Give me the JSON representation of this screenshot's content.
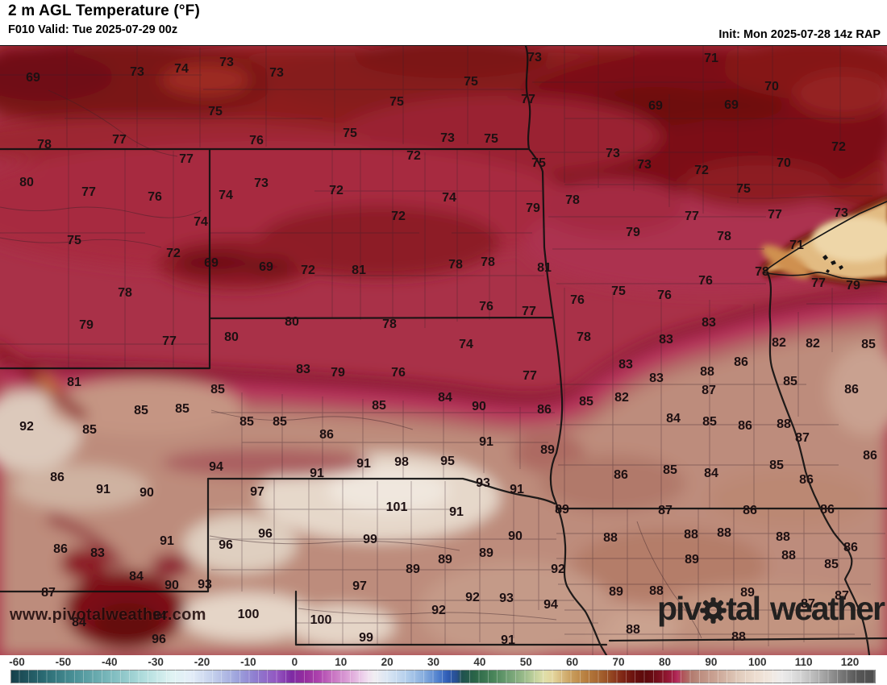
{
  "header": {
    "title": "2 m AGL Temperature (°F)",
    "valid": "F010 Valid: Tue 2025-07-29 00z",
    "init": "Init: Mon 2025-07-28 14z RAP"
  },
  "watermark": "www.pivotalweather.com",
  "logo": {
    "part1": "piv",
    "part2": "tal",
    "part3": "weather",
    "gear_icon": "gear-icon",
    "color": "#1d1d1d"
  },
  "colorbar": {
    "ticks": [
      -60,
      -50,
      -40,
      -30,
      -20,
      -10,
      0,
      10,
      20,
      30,
      40,
      50,
      60,
      70,
      80,
      90,
      100,
      110,
      120
    ],
    "range": [
      -62,
      126
    ],
    "palette": [
      [
        -62,
        "#16404b"
      ],
      [
        -55,
        "#2a6a72"
      ],
      [
        -48,
        "#4b9298"
      ],
      [
        -40,
        "#7fbcbf"
      ],
      [
        -33,
        "#b2dede"
      ],
      [
        -27,
        "#e0f3f3"
      ],
      [
        -23,
        "#e4eef8"
      ],
      [
        -18,
        "#c3cfec"
      ],
      [
        -13,
        "#9fa5dd"
      ],
      [
        -9,
        "#8f7ed0"
      ],
      [
        -4,
        "#9354c0"
      ],
      [
        -1,
        "#7e2ba4"
      ],
      [
        2,
        "#962d9e"
      ],
      [
        5,
        "#ae44ae"
      ],
      [
        8,
        "#c873c2"
      ],
      [
        12,
        "#e0aadb"
      ],
      [
        15,
        "#efd7ee"
      ],
      [
        17,
        "#f1eef2"
      ],
      [
        20,
        "#d9e5f3"
      ],
      [
        24,
        "#b4cfec"
      ],
      [
        28,
        "#84abdd"
      ],
      [
        31,
        "#4f7fcd"
      ],
      [
        33,
        "#2f5cb5"
      ],
      [
        35,
        "#284f8e"
      ],
      [
        36,
        "#1f5150"
      ],
      [
        39,
        "#2b6547"
      ],
      [
        43,
        "#49855a"
      ],
      [
        47,
        "#78a578"
      ],
      [
        50,
        "#9fbe8d"
      ],
      [
        52,
        "#c3d29e"
      ],
      [
        54,
        "#e0dfa9"
      ],
      [
        56,
        "#e3d49b"
      ],
      [
        58,
        "#d6b87c"
      ],
      [
        60,
        "#c89d5c"
      ],
      [
        63,
        "#b87f40"
      ],
      [
        66,
        "#a66430"
      ],
      [
        68,
        "#984e24"
      ],
      [
        70,
        "#88321a"
      ],
      [
        72,
        "#771d12"
      ],
      [
        74,
        "#670f0e"
      ],
      [
        76,
        "#5c090b"
      ],
      [
        78,
        "#6d0d16"
      ],
      [
        80,
        "#871428"
      ],
      [
        82,
        "#a21d44"
      ],
      [
        83,
        "#b52e5e"
      ],
      [
        84,
        "#b04f58"
      ],
      [
        86,
        "#b27a6e"
      ],
      [
        88,
        "#bd8e80"
      ],
      [
        91,
        "#c9a192"
      ],
      [
        94,
        "#d6b9a9"
      ],
      [
        97,
        "#e3cfc0"
      ],
      [
        100,
        "#edddd0"
      ],
      [
        103,
        "#f1e7de"
      ],
      [
        105,
        "#efecea"
      ],
      [
        107,
        "#e6e6e6"
      ],
      [
        110,
        "#d2d2d2"
      ],
      [
        113,
        "#b8b8b8"
      ],
      [
        116,
        "#979797"
      ],
      [
        119,
        "#757575"
      ],
      [
        122,
        "#585858"
      ],
      [
        126,
        "#4c4c4c"
      ]
    ]
  },
  "map_labels": [
    [
      69,
      41,
      95
    ],
    [
      73,
      170,
      88
    ],
    [
      74,
      225,
      84
    ],
    [
      73,
      281,
      76
    ],
    [
      73,
      343,
      89
    ],
    [
      75,
      267,
      137
    ],
    [
      75,
      492,
      125
    ],
    [
      75,
      584,
      100
    ],
    [
      73,
      663,
      70
    ],
    [
      77,
      655,
      122
    ],
    [
      75,
      434,
      164
    ],
    [
      71,
      882,
      71
    ],
    [
      70,
      957,
      106
    ],
    [
      69,
      813,
      130
    ],
    [
      69,
      907,
      129
    ],
    [
      78,
      55,
      178
    ],
    [
      77,
      148,
      172
    ],
    [
      76,
      318,
      173
    ],
    [
      73,
      555,
      170
    ],
    [
      75,
      609,
      171
    ],
    [
      75,
      668,
      201
    ],
    [
      72,
      513,
      192
    ],
    [
      73,
      760,
      189
    ],
    [
      73,
      799,
      203
    ],
    [
      72,
      870,
      210
    ],
    [
      70,
      972,
      201
    ],
    [
      72,
      1040,
      181
    ],
    [
      77,
      231,
      196
    ],
    [
      80,
      33,
      225
    ],
    [
      73,
      324,
      226
    ],
    [
      74,
      280,
      241
    ],
    [
      77,
      110,
      237
    ],
    [
      76,
      192,
      243
    ],
    [
      74,
      249,
      274
    ],
    [
      75,
      92,
      297
    ],
    [
      72,
      417,
      235
    ],
    [
      74,
      557,
      244
    ],
    [
      78,
      710,
      247
    ],
    [
      79,
      661,
      257
    ],
    [
      72,
      494,
      267
    ],
    [
      75,
      922,
      233
    ],
    [
      73,
      1043,
      263
    ],
    [
      77,
      961,
      265
    ],
    [
      77,
      858,
      267
    ],
    [
      79,
      785,
      287
    ],
    [
      78,
      898,
      292
    ],
    [
      71,
      988,
      303
    ],
    [
      72,
      215,
      313
    ],
    [
      69,
      262,
      325
    ],
    [
      69,
      330,
      330
    ],
    [
      78,
      155,
      362
    ],
    [
      79,
      107,
      402
    ],
    [
      77,
      210,
      422
    ],
    [
      80,
      287,
      417
    ],
    [
      80,
      362,
      398
    ],
    [
      72,
      382,
      334
    ],
    [
      81,
      445,
      334
    ],
    [
      78,
      565,
      327
    ],
    [
      78,
      605,
      324
    ],
    [
      81,
      675,
      331
    ],
    [
      76,
      603,
      379
    ],
    [
      77,
      656,
      385
    ],
    [
      76,
      716,
      371
    ],
    [
      78,
      483,
      401
    ],
    [
      74,
      578,
      426
    ],
    [
      78,
      724,
      417
    ],
    [
      75,
      767,
      360
    ],
    [
      76,
      875,
      347
    ],
    [
      76,
      824,
      365
    ],
    [
      78,
      945,
      336
    ],
    [
      77,
      1015,
      350
    ],
    [
      79,
      1058,
      353
    ],
    [
      81,
      92,
      473
    ],
    [
      85,
      270,
      482
    ],
    [
      85,
      175,
      508
    ],
    [
      85,
      226,
      506
    ],
    [
      92,
      33,
      528
    ],
    [
      85,
      111,
      532
    ],
    [
      85,
      306,
      522
    ],
    [
      85,
      347,
      522
    ],
    [
      83,
      376,
      457
    ],
    [
      79,
      419,
      461
    ],
    [
      76,
      494,
      461
    ],
    [
      77,
      657,
      465
    ],
    [
      84,
      552,
      492
    ],
    [
      85,
      470,
      502
    ],
    [
      90,
      594,
      503
    ],
    [
      86,
      675,
      507
    ],
    [
      85,
      727,
      497
    ],
    [
      86,
      405,
      538
    ],
    [
      91,
      603,
      547
    ],
    [
      89,
      679,
      557
    ],
    [
      83,
      879,
      399
    ],
    [
      83,
      826,
      420
    ],
    [
      82,
      966,
      424
    ],
    [
      82,
      1008,
      425
    ],
    [
      85,
      1077,
      426
    ],
    [
      83,
      776,
      451
    ],
    [
      86,
      919,
      448
    ],
    [
      88,
      877,
      460
    ],
    [
      83,
      814,
      468
    ],
    [
      87,
      879,
      483
    ],
    [
      85,
      980,
      472
    ],
    [
      82,
      771,
      492
    ],
    [
      86,
      1056,
      482
    ],
    [
      84,
      835,
      518
    ],
    [
      85,
      880,
      522
    ],
    [
      86,
      924,
      527
    ],
    [
      88,
      972,
      525
    ],
    [
      87,
      995,
      542
    ],
    [
      86,
      71,
      591
    ],
    [
      91,
      128,
      606
    ],
    [
      90,
      182,
      610
    ],
    [
      94,
      268,
      578
    ],
    [
      97,
      319,
      609
    ],
    [
      86,
      75,
      680
    ],
    [
      83,
      121,
      685
    ],
    [
      91,
      207,
      670
    ],
    [
      96,
      280,
      675
    ],
    [
      96,
      329,
      661
    ],
    [
      84,
      169,
      714
    ],
    [
      90,
      213,
      725
    ],
    [
      93,
      254,
      724
    ],
    [
      87,
      60,
      734
    ],
    [
      84,
      98,
      771
    ],
    [
      94,
      198,
      763
    ],
    [
      100,
      308,
      761
    ],
    [
      96,
      197,
      792
    ],
    [
      91,
      451,
      574
    ],
    [
      98,
      498,
      572
    ],
    [
      95,
      555,
      571
    ],
    [
      91,
      393,
      586
    ],
    [
      93,
      599,
      598
    ],
    [
      91,
      641,
      606
    ],
    [
      101,
      492,
      628
    ],
    [
      91,
      566,
      634
    ],
    [
      89,
      697,
      631
    ],
    [
      99,
      459,
      668
    ],
    [
      90,
      639,
      664
    ],
    [
      89,
      603,
      685
    ],
    [
      89,
      552,
      693
    ],
    [
      89,
      512,
      705
    ],
    [
      92,
      692,
      705
    ],
    [
      97,
      446,
      726
    ],
    [
      92,
      586,
      740
    ],
    [
      93,
      628,
      741
    ],
    [
      94,
      683,
      749
    ],
    [
      92,
      544,
      756
    ],
    [
      100,
      398,
      768
    ],
    [
      99,
      454,
      790
    ],
    [
      91,
      630,
      793
    ],
    [
      86,
      770,
      588
    ],
    [
      85,
      831,
      582
    ],
    [
      84,
      882,
      586
    ],
    [
      85,
      963,
      576
    ],
    [
      86,
      1000,
      594
    ],
    [
      86,
      1079,
      564
    ],
    [
      87,
      825,
      632
    ],
    [
      86,
      930,
      632
    ],
    [
      86,
      1026,
      631
    ],
    [
      88,
      757,
      666
    ],
    [
      88,
      857,
      662
    ],
    [
      88,
      898,
      660
    ],
    [
      88,
      971,
      665
    ],
    [
      86,
      1055,
      678
    ],
    [
      89,
      858,
      693
    ],
    [
      88,
      978,
      688
    ],
    [
      85,
      1031,
      699
    ],
    [
      89,
      764,
      733
    ],
    [
      88,
      814,
      732
    ],
    [
      89,
      927,
      734
    ],
    [
      87,
      1002,
      748
    ],
    [
      87,
      1044,
      738
    ],
    [
      88,
      785,
      780
    ],
    [
      88,
      916,
      789
    ]
  ]
}
